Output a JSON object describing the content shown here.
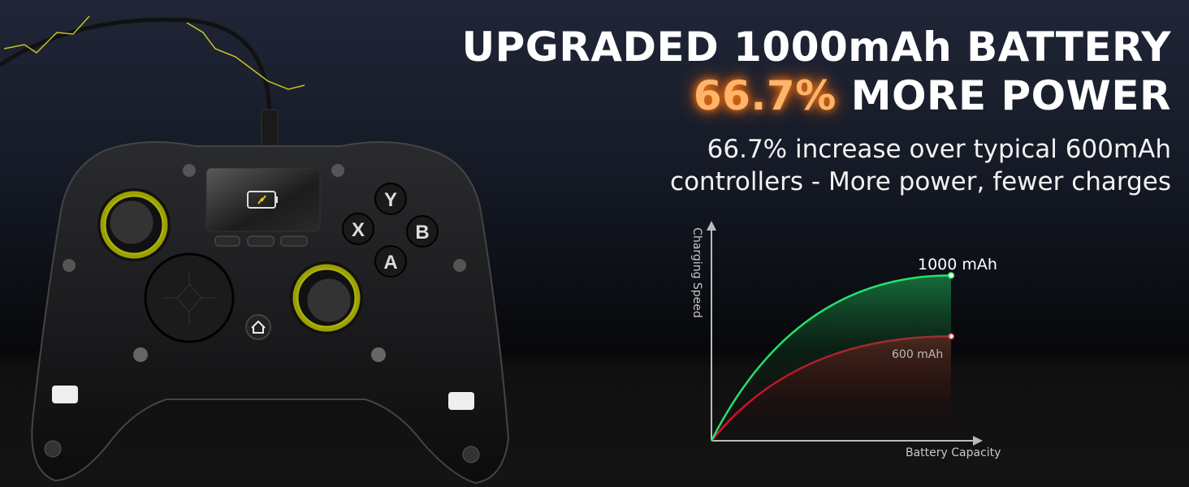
{
  "headline": {
    "line1": "UPGRADED 1000mAh BATTERY",
    "line2_accent": "66.7%",
    "line2_rest": " MORE POWER",
    "accent_color": "#ff9a3c"
  },
  "subtitle": {
    "line1": "66.7% increase over typical 600mAh",
    "line2": "controllers - More power, fewer charges"
  },
  "controller": {
    "buttons": [
      "Y",
      "X",
      "B",
      "A"
    ],
    "screen_icon": "battery-charging-icon",
    "home_icon": "home-icon",
    "ring_color": "#e6f01a"
  },
  "chart_data": {
    "type": "line",
    "xlabel": "Battery Capacity",
    "ylabel": "Charging Speed",
    "series": [
      {
        "name": "1000 mAh",
        "color": "#22e36a",
        "end_level": 0.76
      },
      {
        "name": "600 mAh",
        "color": "#e8102a",
        "end_level": 0.48
      }
    ],
    "grid": false
  }
}
